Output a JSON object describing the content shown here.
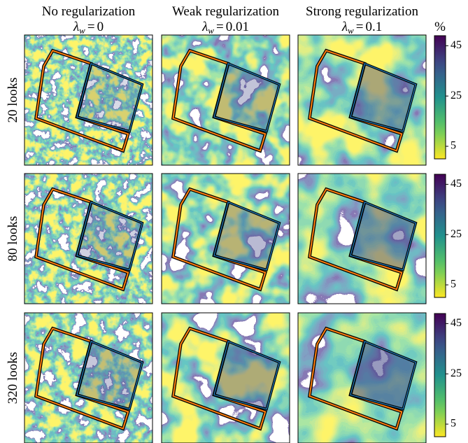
{
  "chart_data": {
    "type": "image-grid",
    "columns": [
      {
        "title": "No regularization",
        "parameter": {
          "symbol": "λ",
          "subscript": "w",
          "relation": "=",
          "value": 0
        }
      },
      {
        "title": "Weak regularization",
        "parameter": {
          "symbol": "λ",
          "subscript": "w",
          "relation": "=",
          "value": 0.01
        }
      },
      {
        "title": "Strong regularization",
        "parameter": {
          "symbol": "λ",
          "subscript": "w",
          "relation": "=",
          "value": 0.1
        }
      }
    ],
    "rows": [
      "20 looks",
      "80 looks",
      "320 looks"
    ],
    "colorbar": {
      "label": "%",
      "ylim": [
        0,
        49
      ],
      "yticks": [
        5,
        25,
        45
      ],
      "colormap": "viridis"
    }
  }
}
